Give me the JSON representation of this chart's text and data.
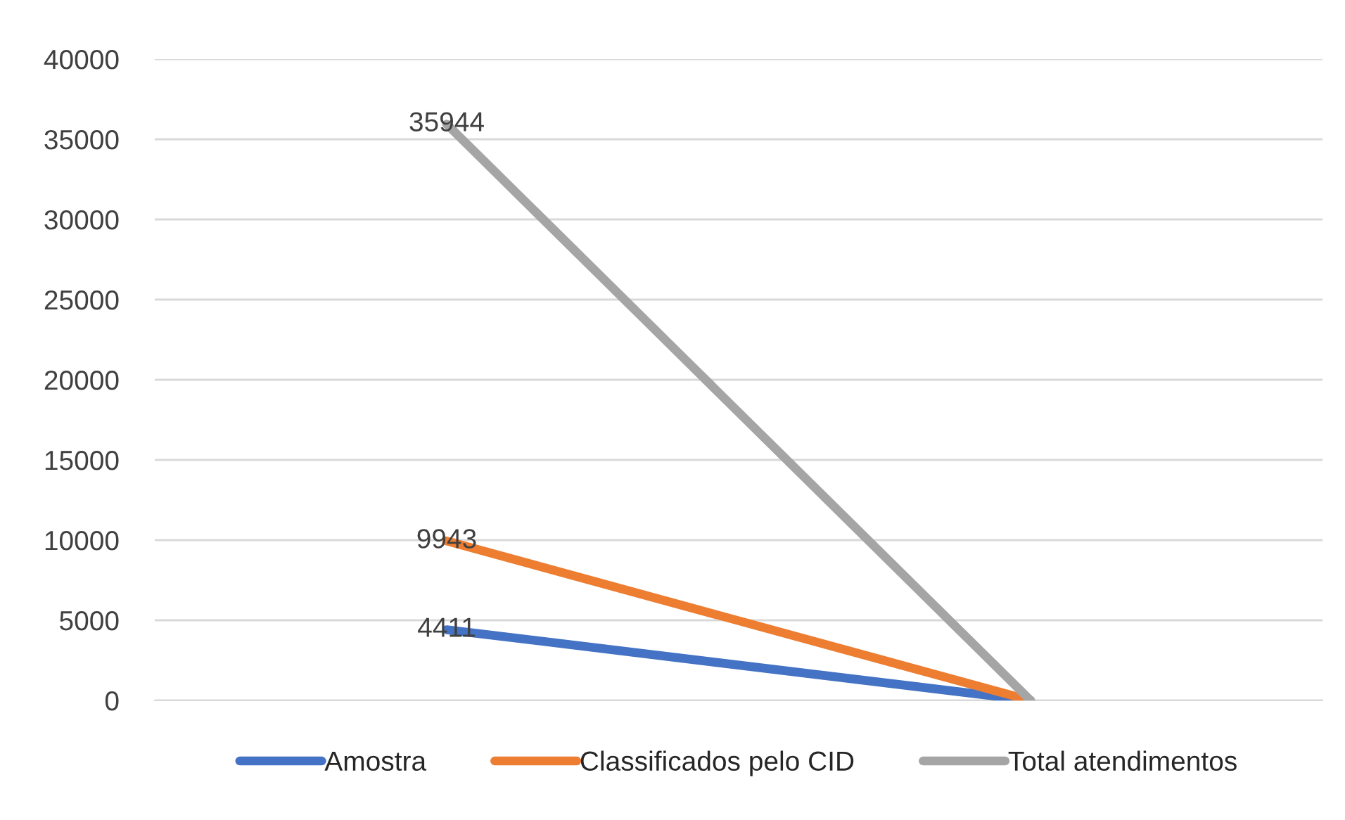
{
  "chart_data": {
    "type": "line",
    "categories": [
      null,
      null
    ],
    "series": [
      {
        "name": "Amostra",
        "color": "#4472c4",
        "values": [
          4411,
          0
        ],
        "value_labels": [
          "4411",
          null
        ]
      },
      {
        "name": "Classificados pelo CID",
        "color": "#ed7d31",
        "values": [
          9943,
          0
        ],
        "value_labels": [
          "9943",
          null
        ]
      },
      {
        "name": "Total atendimentos",
        "color": "#a5a5a5",
        "values": [
          35944,
          0
        ],
        "value_labels": [
          "35944",
          null
        ]
      }
    ],
    "ylim": [
      0,
      40000
    ],
    "yticks": [
      0,
      5000,
      10000,
      15000,
      20000,
      25000,
      30000,
      35000,
      40000
    ],
    "grid": "y",
    "legend": "bottom",
    "marker": "none",
    "line_style": "solid"
  }
}
